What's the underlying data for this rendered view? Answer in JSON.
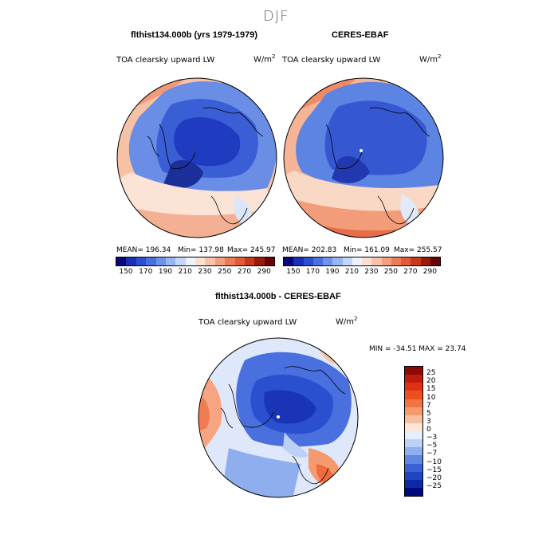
{
  "page": {
    "title": "DJF"
  },
  "panels": [
    {
      "header": "flthist134.000b (yrs 1979-1979)",
      "variable": "TOA clearsky upward LW",
      "units": "W/m",
      "units_exp": "2",
      "mean": "MEAN= 196.34",
      "min": "Min= 137.98",
      "max": "Max= 245.97"
    },
    {
      "header": "CERES-EBAF",
      "variable": "TOA clearsky upward LW",
      "units": "W/m",
      "units_exp": "2",
      "mean": "MEAN= 202.83",
      "min": "Min= 161.09",
      "max": "Max= 255.57"
    }
  ],
  "abs_colorbar": {
    "ticks": [
      "150",
      "170",
      "190",
      "210",
      "230",
      "250",
      "270",
      "290"
    ],
    "colors": [
      "#08087a",
      "#1a2fb8",
      "#2a50d0",
      "#4a70e0",
      "#6f92ec",
      "#99b6f3",
      "#c4d6f8",
      "#eef2fb",
      "#fbe0d2",
      "#f8c2a8",
      "#f2a080",
      "#ec7c58",
      "#e45a36",
      "#c8381c",
      "#9a1a0a",
      "#6a0404"
    ]
  },
  "diff_panel": {
    "header": "flthist134.000b - CERES-EBAF",
    "variable": "TOA clearsky upward LW",
    "units": "W/m",
    "units_exp": "2",
    "min_max": "MIN = -34.51 MAX =  23.74"
  },
  "diff_colorbar": {
    "labels": [
      "25",
      "20",
      "15",
      "10",
      "7",
      "5",
      "3",
      "0",
      "−3",
      "−5",
      "−7",
      "−10",
      "−15",
      "−20",
      "−25"
    ],
    "colors": [
      "#8a0a06",
      "#c01a0c",
      "#de3212",
      "#ef4f1f",
      "#f27442",
      "#f49a6e",
      "#f6c0a0",
      "#fbe6d8",
      "#e6edfb",
      "#bdd0f6",
      "#8faeee",
      "#6088e2",
      "#3a62d4",
      "#2244c0",
      "#0a2aa8",
      "#000a7a"
    ]
  }
}
